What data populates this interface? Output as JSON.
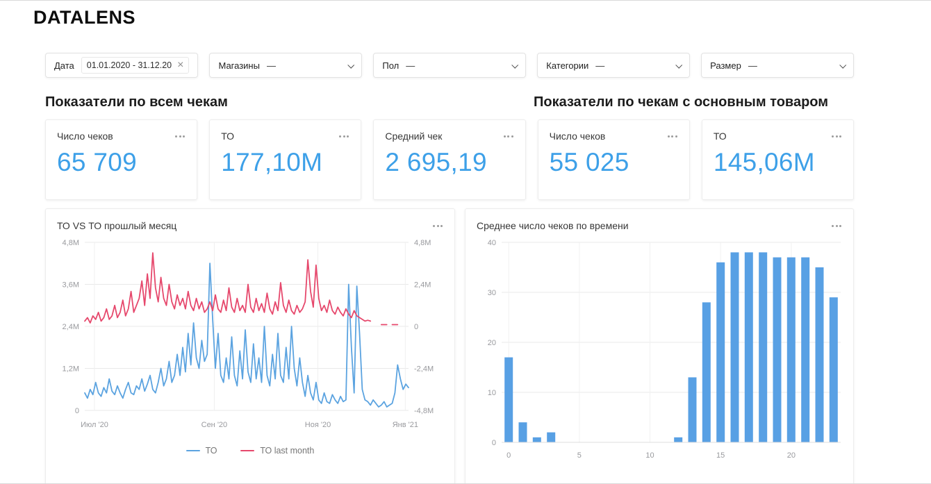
{
  "logo": "DATALENS",
  "icons": {
    "clear": "×"
  },
  "filters": [
    {
      "label": "Дата",
      "value": "01.01.2020 - 31.12.20"
    },
    {
      "label": "Магазины",
      "value": "—"
    },
    {
      "label": "Пол",
      "value": "—"
    },
    {
      "label": "Категории",
      "value": "—"
    },
    {
      "label": "Размер",
      "value": "—"
    }
  ],
  "sections": [
    {
      "title": "Показатели по всем чекам"
    },
    {
      "title": "Показатели по чекам с основным товаром"
    }
  ],
  "kpi_cards": [
    {
      "title": "Число чеков",
      "value": "65 709"
    },
    {
      "title": "ТО",
      "value": "177,10M"
    },
    {
      "title": "Средний чек",
      "value": "2 695,19"
    },
    {
      "title": "Число чеков",
      "value": "55 025"
    },
    {
      "title": "ТО",
      "value": "145,06M"
    }
  ],
  "colors": {
    "accent_blue": "#3da0e8",
    "line_blue": "#5ba3e0",
    "line_red": "#e6486c",
    "bar_blue": "#58a0e4",
    "grid": "#e9e9e9"
  },
  "chart_data": [
    {
      "type": "line",
      "title": "ТО VS ТО прошлый месяц",
      "legend": [
        {
          "name": "ТО",
          "color": "#5ba3e0"
        },
        {
          "name": "ТО last month",
          "color": "#e6486c"
        }
      ],
      "y_left": {
        "min": 0,
        "max": 4.8,
        "ticks": [
          "0",
          "1,2M",
          "2,4M",
          "3,6M",
          "4,8M"
        ]
      },
      "y_right": {
        "min": -4.8,
        "max": 4.8,
        "ticks": [
          "-4,8M",
          "-2,4M",
          "0",
          "2,4M",
          "4,8M"
        ]
      },
      "x_ticks": [
        {
          "label": "Июл '20",
          "pos": 0.03
        },
        {
          "label": "Сен '20",
          "pos": 0.4
        },
        {
          "label": "Ноя '20",
          "pos": 0.72
        },
        {
          "label": "Янв '21",
          "pos": 0.99
        }
      ],
      "series": [
        {
          "name": "ТО",
          "axis": "left",
          "color": "#5ba3e0",
          "unit": "M",
          "values": [
            0.5,
            0.35,
            0.6,
            0.45,
            0.8,
            0.5,
            0.4,
            0.65,
            0.5,
            0.9,
            0.55,
            0.45,
            0.7,
            0.5,
            0.35,
            0.6,
            0.8,
            0.5,
            0.45,
            0.7,
            0.6,
            0.9,
            0.55,
            0.75,
            1.0,
            0.6,
            0.5,
            0.8,
            1.2,
            0.7,
            0.9,
            1.4,
            0.8,
            1.0,
            1.6,
            1.0,
            1.8,
            1.1,
            2.2,
            1.3,
            2.5,
            1.5,
            1.2,
            2.0,
            1.4,
            1.6,
            4.2,
            2.6,
            1.2,
            2.2,
            1.0,
            0.8,
            1.5,
            0.9,
            2.1,
            1.0,
            0.7,
            1.7,
            0.9,
            2.3,
            1.1,
            0.8,
            1.9,
            0.9,
            1.5,
            0.8,
            2.4,
            1.0,
            0.7,
            1.6,
            0.9,
            2.2,
            1.0,
            0.8,
            1.8,
            0.9,
            2.4,
            1.2,
            0.7,
            1.5,
            0.8,
            0.4,
            1.0,
            0.5,
            0.3,
            0.8,
            0.3,
            0.2,
            0.5,
            0.25,
            0.2,
            0.45,
            0.3,
            0.2,
            0.4,
            0.25,
            0.3,
            3.6,
            1.8,
            0.5,
            3.55,
            2.2,
            0.6,
            0.3,
            0.25,
            0.15,
            0.3,
            0.2,
            0.1,
            0.15,
            0.25,
            0.1,
            0.15,
            0.2,
            0.5,
            1.3,
            0.9,
            0.6,
            0.75,
            0.65
          ]
        },
        {
          "name": "ТО last month",
          "axis": "right",
          "color": "#e6486c",
          "unit": "M",
          "values": [
            0.3,
            0.5,
            0.2,
            0.6,
            0.4,
            0.8,
            0.3,
            0.5,
            1.0,
            0.4,
            0.6,
            1.2,
            0.5,
            0.8,
            1.5,
            0.6,
            1.0,
            2.0,
            0.8,
            1.2,
            1.6,
            2.6,
            1.2,
            3.0,
            1.6,
            4.2,
            2.2,
            1.4,
            2.8,
            1.6,
            1.2,
            2.4,
            1.4,
            1.0,
            1.8,
            1.2,
            1.6,
            1.0,
            2.0,
            1.2,
            0.9,
            1.6,
            1.0,
            1.4,
            0.8,
            1.0,
            1.4,
            0.9,
            1.8,
            1.0,
            0.8,
            1.5,
            0.9,
            2.2,
            1.1,
            0.8,
            1.6,
            0.9,
            1.2,
            0.8,
            2.4,
            1.1,
            0.8,
            1.6,
            0.9,
            1.3,
            0.8,
            1.9,
            1.0,
            0.7,
            1.4,
            0.9,
            2.5,
            1.2,
            0.8,
            1.5,
            0.9,
            0.7,
            1.2,
            0.8,
            1.0,
            1.4,
            3.8,
            2.0,
            1.1,
            3.5,
            1.6,
            0.9,
            1.2,
            0.8,
            1.5,
            0.9,
            0.7,
            1.1,
            0.8,
            0.6,
            1.0,
            0.7,
            0.5,
            0.9,
            0.6,
            0.5,
            0.4,
            0.3,
            0.35,
            0.3,
            null,
            null,
            null,
            0.1,
            0.1,
            0.1,
            null,
            0.1,
            0.1,
            0.1,
            null,
            null,
            null,
            null
          ]
        }
      ]
    },
    {
      "type": "bar",
      "title": "Среднее число чеков по времени",
      "categories": [
        0,
        1,
        2,
        3,
        4,
        5,
        6,
        7,
        8,
        9,
        10,
        11,
        12,
        13,
        14,
        15,
        16,
        17,
        18,
        19,
        20,
        21,
        22,
        23
      ],
      "values": [
        17,
        4,
        1,
        2,
        0,
        0,
        0,
        0,
        0,
        0,
        0,
        0,
        1,
        13,
        28,
        36,
        38,
        38,
        38,
        37,
        37,
        37,
        35,
        29
      ],
      "ylim": [
        0,
        40
      ],
      "y_ticks": [
        "0",
        "10",
        "20",
        "30",
        "40"
      ],
      "x_ticks": [
        0,
        5,
        10,
        15,
        20
      ],
      "bar_color": "#58a0e4"
    }
  ]
}
